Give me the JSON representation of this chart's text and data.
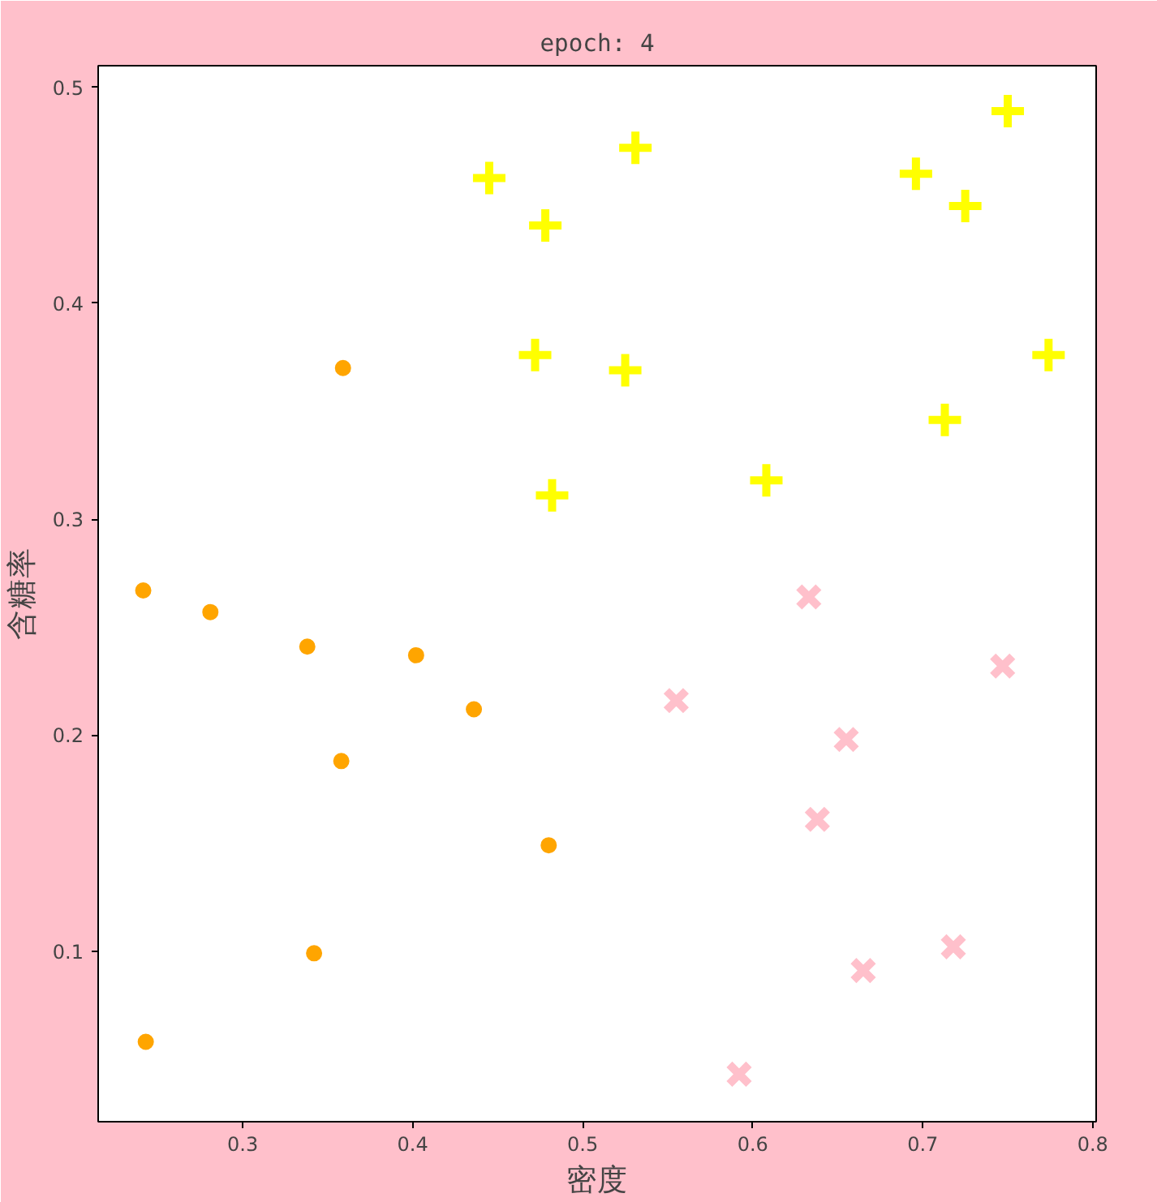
{
  "chart_data": {
    "type": "scatter",
    "title": "epoch: 4",
    "xlabel": "密度",
    "ylabel": "含糖率",
    "xlim": [
      0.215,
      0.802
    ],
    "ylim": [
      0.021,
      0.51
    ],
    "xticks": [
      0.3,
      0.4,
      0.5,
      0.6,
      0.7,
      0.8
    ],
    "yticks": [
      0.1,
      0.2,
      0.3,
      0.4,
      0.5
    ],
    "grid": false,
    "series": [
      {
        "color": "#ffa500",
        "marker": "circle",
        "x": [
          0.359,
          0.2415,
          0.281,
          0.338,
          0.402,
          0.436,
          0.358,
          0.48,
          0.342,
          0.243
        ],
        "values": [
          0.37,
          0.267,
          0.257,
          0.241,
          0.237,
          0.212,
          0.188,
          0.149,
          0.099,
          0.058
        ]
      },
      {
        "color": "#ffff00",
        "marker": "cross",
        "x": [
          0.445,
          0.531,
          0.478,
          0.472,
          0.525,
          0.482,
          0.608,
          0.696,
          0.725,
          0.75,
          0.774,
          0.713
        ],
        "values": [
          0.458,
          0.472,
          0.436,
          0.376,
          0.369,
          0.311,
          0.318,
          0.46,
          0.445,
          0.489,
          0.376,
          0.346
        ]
      },
      {
        "color": "#ffc0cb",
        "marker": "x",
        "x": [
          0.633,
          0.555,
          0.655,
          0.638,
          0.747,
          0.718,
          0.665,
          0.592
        ],
        "values": [
          0.264,
          0.216,
          0.198,
          0.161,
          0.232,
          0.102,
          0.091,
          0.043
        ]
      }
    ]
  }
}
